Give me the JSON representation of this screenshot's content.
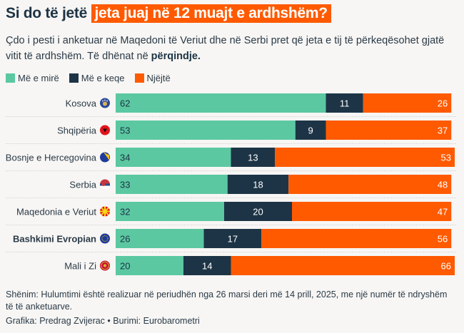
{
  "title": {
    "plain": "Si do të jetë",
    "highlight": "jeta juaj në 12 muajt e ardhshëm?"
  },
  "subtitle": {
    "text": "Çdo i pesti i anketuar në Maqedoni të Veriut dhe në Serbi pret që jeta e tij të përkeqësohet gjatë vitit të ardhshëm. Të dhënat në",
    "bold": "përqindje."
  },
  "colors": {
    "better": "#5bc8a2",
    "worse": "#1d3446",
    "same": "#ff5a00",
    "accent": "#ff5a00"
  },
  "chart_data": {
    "type": "bar",
    "orientation": "horizontal",
    "stacked": true,
    "title": "Si do të jetë jeta juaj në 12 muajt e ardhshëm?",
    "xlabel": "",
    "ylabel": "",
    "xlim": [
      0,
      100
    ],
    "legend_position": "top-left",
    "categories": [
      "Kosova",
      "Shqipëria",
      "Bosnje e Hercegovina",
      "Serbia",
      "Maqedonia e Veriut",
      "Bashkimi Evropian",
      "Mali i Zi"
    ],
    "bold_categories": [
      "Bashkimi Evropian"
    ],
    "flags": [
      "kosovo-flag-icon",
      "albania-flag-icon",
      "bosnia-flag-icon",
      "serbia-flag-icon",
      "north-macedonia-flag-icon",
      "eu-flag-icon",
      "montenegro-flag-icon"
    ],
    "series": [
      {
        "name": "Më e mirë",
        "color": "#5bc8a2",
        "values": [
          62,
          53,
          34,
          33,
          32,
          26,
          20
        ]
      },
      {
        "name": "Më e keqe",
        "color": "#1d3446",
        "values": [
          11,
          9,
          13,
          18,
          20,
          17,
          14
        ]
      },
      {
        "name": "Njëjtë",
        "color": "#ff5a00",
        "values": [
          26,
          37,
          53,
          48,
          47,
          56,
          66
        ]
      }
    ]
  },
  "footer": {
    "note": "Shënim: Hulumtimi është realizuar në periudhën nga 26 marsi deri më 14 prill, 2025, me një numër të ndryshëm të të anketuarve.",
    "credit": "Grafika: Predrag Zvijerac • Burimi: Eurobarometri"
  }
}
